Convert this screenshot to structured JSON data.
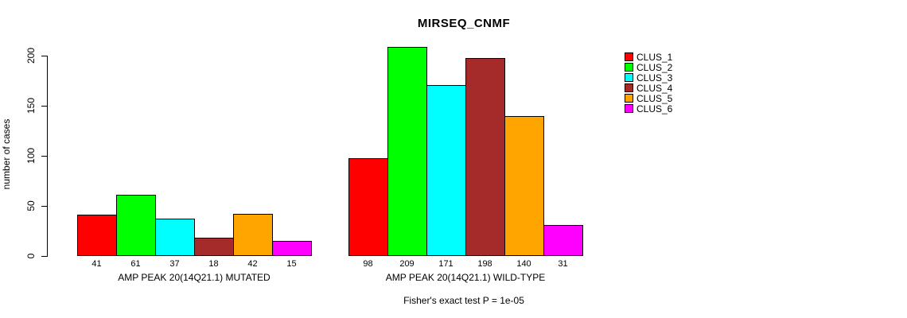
{
  "title": "MIRSEQ_CNMF",
  "chart_data": {
    "type": "bar",
    "title": "MIRSEQ_CNMF",
    "xlabel": "",
    "ylabel": "number of cases",
    "yticks": [
      0,
      50,
      100,
      150,
      200
    ],
    "ylim": [
      0,
      209
    ],
    "grid": false,
    "legend_position": "right",
    "categories": [
      "AMP PEAK 20(14Q21.1) MUTATED",
      "AMP PEAK 20(14Q21.1) WILD-TYPE"
    ],
    "series": [
      {
        "name": "CLUS_1",
        "color": "#FF0000",
        "values": [
          41,
          98
        ]
      },
      {
        "name": "CLUS_2",
        "color": "#00FF00",
        "values": [
          61,
          209
        ]
      },
      {
        "name": "CLUS_3",
        "color": "#00FFFF",
        "values": [
          37,
          171
        ]
      },
      {
        "name": "CLUS_4",
        "color": "#A52A2A",
        "values": [
          18,
          198
        ]
      },
      {
        "name": "CLUS_5",
        "color": "#FFA500",
        "values": [
          42,
          140
        ]
      },
      {
        "name": "CLUS_6",
        "color": "#FF00FF",
        "values": [
          15,
          31
        ]
      }
    ],
    "bar_value_labels": [
      [
        41,
        61,
        37,
        18,
        42,
        15
      ],
      [
        98,
        209,
        171,
        198,
        140,
        31
      ]
    ],
    "annotation": "Fisher's exact test P = 1e-05"
  },
  "legend": {
    "items": [
      {
        "label": "CLUS_1",
        "color": "#FF0000"
      },
      {
        "label": "CLUS_2",
        "color": "#00FF00"
      },
      {
        "label": "CLUS_3",
        "color": "#00FFFF"
      },
      {
        "label": "CLUS_4",
        "color": "#A52A2A"
      },
      {
        "label": "CLUS_5",
        "color": "#FFA500"
      },
      {
        "label": "CLUS_6",
        "color": "#FF00FF"
      }
    ]
  },
  "footer": {
    "text": "Fisher's exact test P = 1e-05"
  }
}
